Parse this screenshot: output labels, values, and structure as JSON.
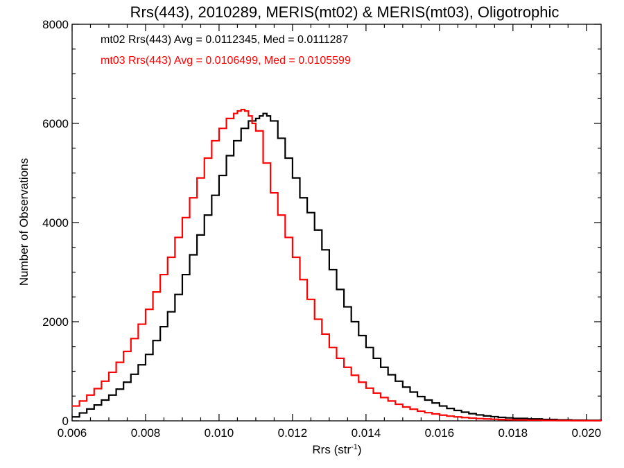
{
  "chart_data": {
    "type": "line",
    "title": "Rrs(443), 2010289, MERIS(mt02) & MERIS(mt03), Oligotrophic",
    "xlabel": "Rrs (str",
    "xlabel_sup": "-1",
    "xlabel_suffix": ")",
    "ylabel": "Number of Observations",
    "xlim": [
      0.006,
      0.0204
    ],
    "ylim": [
      0,
      8000
    ],
    "xticks": [
      "0.006",
      "0.008",
      "0.010",
      "0.012",
      "0.014",
      "0.016",
      "0.018",
      "0.020"
    ],
    "xtick_values": [
      0.006,
      0.008,
      0.01,
      0.012,
      0.014,
      0.016,
      0.018,
      0.02
    ],
    "yticks": [
      "0",
      "2000",
      "4000",
      "6000",
      "8000"
    ],
    "ytick_values": [
      0,
      2000,
      4000,
      6000,
      8000
    ],
    "grid": false,
    "style": "step",
    "annotations": [
      {
        "text": "mt02 Rrs(443) Avg = 0.0112345, Med = 0.0111287",
        "color": "#000000"
      },
      {
        "text": "mt03 Rrs(443) Avg = 0.0106499, Med = 0.0105599",
        "color": "#ff0000"
      }
    ],
    "series": [
      {
        "color": "#000000",
        "x": [
          0.006,
          0.0062,
          0.0064,
          0.0066,
          0.0068,
          0.007,
          0.0072,
          0.0074,
          0.0076,
          0.0078,
          0.008,
          0.0082,
          0.0084,
          0.0086,
          0.0088,
          0.009,
          0.0092,
          0.0094,
          0.0096,
          0.0098,
          0.01,
          0.0102,
          0.0104,
          0.0106,
          0.0108,
          0.011,
          0.0111,
          0.0112,
          0.0113,
          0.0114,
          0.0116,
          0.0118,
          0.012,
          0.0122,
          0.0124,
          0.0126,
          0.0128,
          0.013,
          0.0132,
          0.0134,
          0.0136,
          0.0138,
          0.014,
          0.0142,
          0.0144,
          0.0146,
          0.0148,
          0.015,
          0.0152,
          0.0154,
          0.0156,
          0.0158,
          0.016,
          0.0162,
          0.0164,
          0.0166,
          0.0168,
          0.017,
          0.0172,
          0.0174,
          0.0176,
          0.0178,
          0.018,
          0.0184,
          0.0188,
          0.0192,
          0.0196,
          0.02,
          0.0204
        ],
        "values": [
          80,
          160,
          240,
          320,
          420,
          520,
          640,
          780,
          940,
          1130,
          1340,
          1620,
          1900,
          2200,
          2550,
          2950,
          3350,
          3750,
          4150,
          4550,
          4950,
          5350,
          5650,
          5900,
          6050,
          6100,
          6150,
          6200,
          6150,
          6050,
          5700,
          5300,
          4900,
          4500,
          4200,
          3850,
          3450,
          3050,
          2650,
          2300,
          2000,
          1720,
          1480,
          1260,
          1080,
          930,
          800,
          680,
          580,
          490,
          420,
          360,
          300,
          250,
          210,
          175,
          145,
          120,
          100,
          85,
          70,
          60,
          50,
          38,
          28,
          20,
          14,
          10,
          6
        ]
      },
      {
        "color": "#ff0000",
        "x": [
          0.006,
          0.0062,
          0.0064,
          0.0066,
          0.0068,
          0.007,
          0.0072,
          0.0074,
          0.0076,
          0.0078,
          0.008,
          0.0082,
          0.0084,
          0.0086,
          0.0088,
          0.009,
          0.0092,
          0.0094,
          0.0096,
          0.0098,
          0.01,
          0.0102,
          0.0104,
          0.0105,
          0.0106,
          0.0107,
          0.0108,
          0.0109,
          0.011,
          0.0112,
          0.0114,
          0.0116,
          0.0118,
          0.012,
          0.0122,
          0.0124,
          0.0126,
          0.0128,
          0.013,
          0.0132,
          0.0134,
          0.0136,
          0.0138,
          0.014,
          0.0142,
          0.0144,
          0.0146,
          0.0148,
          0.015,
          0.0152,
          0.0154,
          0.0156,
          0.0158,
          0.016,
          0.0162,
          0.0164,
          0.0166,
          0.0168,
          0.017,
          0.0172,
          0.0174,
          0.0176,
          0.0178,
          0.018,
          0.0184,
          0.0188,
          0.0192,
          0.0196,
          0.02,
          0.0204
        ],
        "values": [
          300,
          400,
          520,
          650,
          800,
          980,
          1180,
          1400,
          1660,
          1950,
          2250,
          2600,
          2950,
          3300,
          3700,
          4100,
          4500,
          4900,
          5300,
          5650,
          5900,
          6100,
          6200,
          6250,
          6280,
          6250,
          6150,
          6000,
          5850,
          5200,
          4600,
          4150,
          3700,
          3300,
          2850,
          2450,
          2050,
          1750,
          1480,
          1260,
          1080,
          920,
          780,
          660,
          560,
          470,
          400,
          335,
          280,
          235,
          195,
          165,
          140,
          115,
          95,
          80,
          66,
          55,
          46,
          38,
          32,
          26,
          22,
          18,
          13,
          9,
          7,
          5,
          4,
          3
        ]
      }
    ]
  }
}
